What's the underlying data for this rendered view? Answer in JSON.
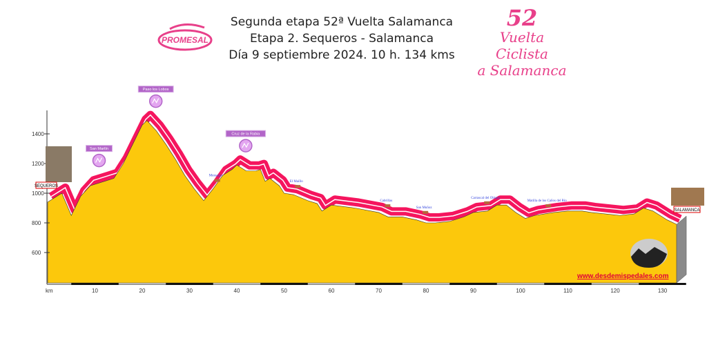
{
  "header": {
    "line1": "Segunda etapa 52ª Vuelta Salamanca",
    "line2": "Etapa 2. Sequeros - Salamanca",
    "line3": "Día 9 septiembre 2024. 10 h. 134 kms",
    "logo_left": "PROMESAL",
    "logo_right_number": "52",
    "logo_right_l1": "Vuelta Ciclista",
    "logo_right_l2": "a Salamanca"
  },
  "website": "www.desdemispedales.com",
  "colors": {
    "profile": "#fcc80c",
    "band": "#f5155e",
    "wall": "#8a8a8a",
    "peak": "#b265c8",
    "place": "#3344dd"
  },
  "chart_data": {
    "type": "area",
    "xlabel": "km",
    "ylabel": "",
    "xlim": [
      0,
      134
    ],
    "ylim": [
      395,
      1630
    ],
    "xticks": [
      10,
      20,
      30,
      40,
      50,
      60,
      70,
      80,
      90,
      100,
      110,
      120,
      130
    ],
    "yticks": [
      600,
      800,
      1000,
      1200,
      1400
    ],
    "start": "SEQUEROS",
    "finish": "SALAMANCA",
    "profile": [
      [
        0,
        940
      ],
      [
        3,
        1000
      ],
      [
        5,
        850
      ],
      [
        7,
        980
      ],
      [
        9,
        1050
      ],
      [
        12,
        1080
      ],
      [
        14,
        1100
      ],
      [
        16,
        1200
      ],
      [
        18,
        1330
      ],
      [
        20,
        1460
      ],
      [
        21,
        1490
      ],
      [
        23,
        1420
      ],
      [
        25,
        1330
      ],
      [
        27,
        1230
      ],
      [
        29,
        1120
      ],
      [
        31,
        1030
      ],
      [
        33,
        950
      ],
      [
        35,
        1030
      ],
      [
        37,
        1120
      ],
      [
        39,
        1160
      ],
      [
        40,
        1190
      ],
      [
        42,
        1150
      ],
      [
        44,
        1150
      ],
      [
        45,
        1160
      ],
      [
        46,
        1080
      ],
      [
        47,
        1100
      ],
      [
        49,
        1050
      ],
      [
        50,
        1000
      ],
      [
        52,
        990
      ],
      [
        55,
        950
      ],
      [
        57,
        930
      ],
      [
        58,
        880
      ],
      [
        60,
        920
      ],
      [
        65,
        900
      ],
      [
        70,
        870
      ],
      [
        72,
        840
      ],
      [
        75,
        840
      ],
      [
        78,
        820
      ],
      [
        80,
        800
      ],
      [
        82,
        800
      ],
      [
        85,
        810
      ],
      [
        88,
        840
      ],
      [
        90,
        870
      ],
      [
        93,
        880
      ],
      [
        95,
        920
      ],
      [
        97,
        920
      ],
      [
        99,
        870
      ],
      [
        101,
        830
      ],
      [
        103,
        850
      ],
      [
        105,
        860
      ],
      [
        107,
        870
      ],
      [
        110,
        880
      ],
      [
        113,
        880
      ],
      [
        115,
        870
      ],
      [
        118,
        860
      ],
      [
        121,
        850
      ],
      [
        124,
        860
      ],
      [
        126,
        900
      ],
      [
        128,
        880
      ],
      [
        131,
        820
      ],
      [
        133,
        790
      ]
    ],
    "climbs": [
      {
        "name": "San Martín",
        "km": 10,
        "elev": 1090
      },
      {
        "name": "Paso los Lobos",
        "km": 22,
        "elev": 1490
      },
      {
        "name": "Cruz de la Rabia",
        "km": 41,
        "elev": 1190
      }
    ],
    "places": [
      {
        "name": "Monsagro",
        "km": 35,
        "elev": 1030
      },
      {
        "name": "El Maíllo",
        "km": 52,
        "elev": 990
      },
      {
        "name": "Cabrillas",
        "km": 71,
        "elev": 860
      },
      {
        "name": "San Muñoz",
        "km": 79,
        "elev": 815
      },
      {
        "name": "Carrascal del Obispo",
        "km": 92,
        "elev": 880
      },
      {
        "name": "Matilla de los Caños del Río",
        "km": 105,
        "elev": 860
      }
    ]
  }
}
